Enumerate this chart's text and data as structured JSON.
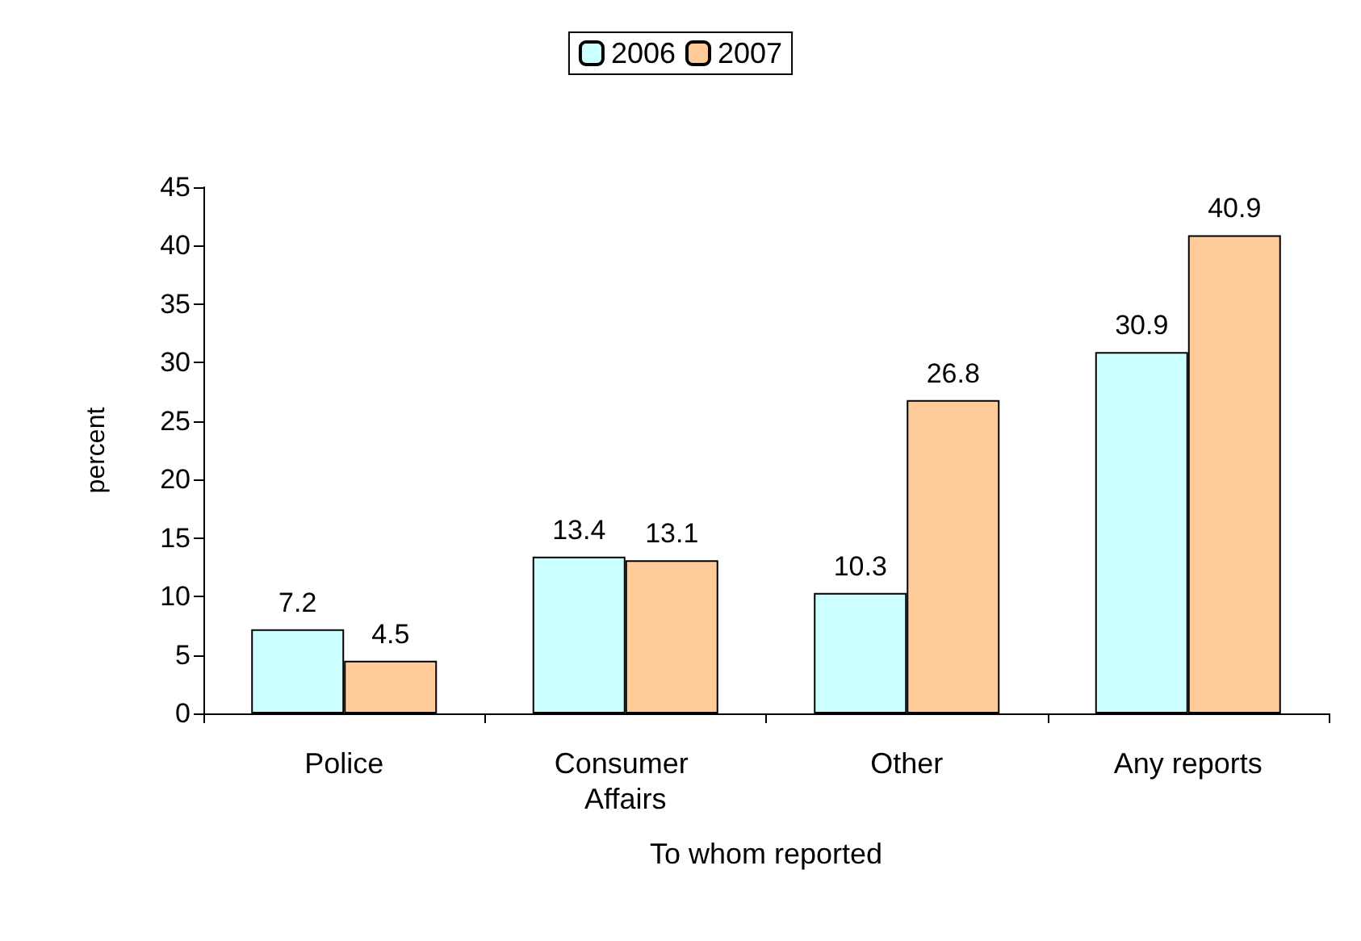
{
  "chart_data": {
    "type": "bar",
    "xlabel": "To whom reported",
    "ylabel": "percent",
    "categories": [
      "Police",
      "Consumer Affairs",
      "Other",
      "Any reports"
    ],
    "series": [
      {
        "name": "2006",
        "color": "#ccffff",
        "values": [
          7.2,
          13.4,
          10.3,
          30.9
        ]
      },
      {
        "name": "2007",
        "color": "#ffcc99",
        "values": [
          4.5,
          13.1,
          26.8,
          40.9
        ]
      }
    ],
    "ylim": [
      0,
      45
    ],
    "yticks": [
      0,
      5,
      10,
      15,
      20,
      25,
      30,
      35,
      40,
      45
    ],
    "grid": false,
    "legend": "top",
    "data_labels": true
  }
}
